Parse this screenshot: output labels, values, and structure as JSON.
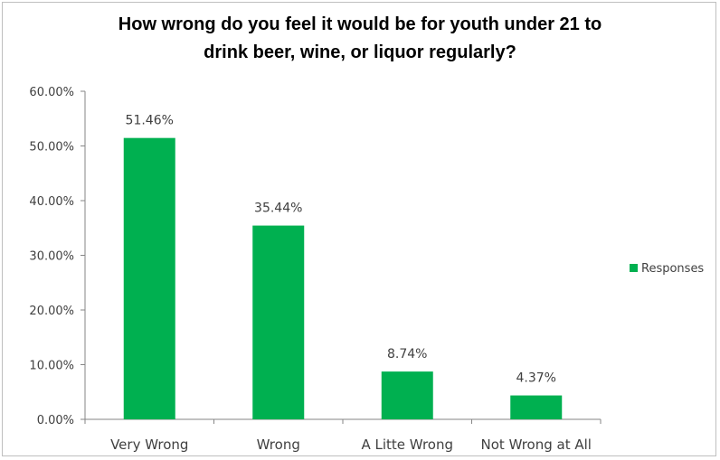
{
  "chart_data": {
    "type": "bar",
    "title": "How wrong do you feel it would be for youth under 21 to drink beer, wine, or liquor regularly?",
    "title_lines": [
      "How wrong do you feel it would be for youth under 21 to",
      "drink beer, wine, or liquor regularly?"
    ],
    "categories": [
      "Very Wrong",
      "Wrong",
      "A Litte Wrong",
      "Not Wrong at All"
    ],
    "series": [
      {
        "name": "Responses",
        "values": [
          51.46,
          35.44,
          8.74,
          4.37
        ],
        "value_labels": [
          "51.46%",
          "35.44%",
          "8.74%",
          "4.37%"
        ],
        "color": "#00b050"
      }
    ],
    "ylim": [
      0,
      60
    ],
    "yticks": [
      0,
      10,
      20,
      30,
      40,
      50,
      60
    ],
    "ytick_labels": [
      "0.00%",
      "10.00%",
      "20.00%",
      "30.00%",
      "40.00%",
      "50.00%",
      "60.00%"
    ],
    "xlabel": "",
    "ylabel": "",
    "grid": false,
    "legend_position": "right"
  }
}
